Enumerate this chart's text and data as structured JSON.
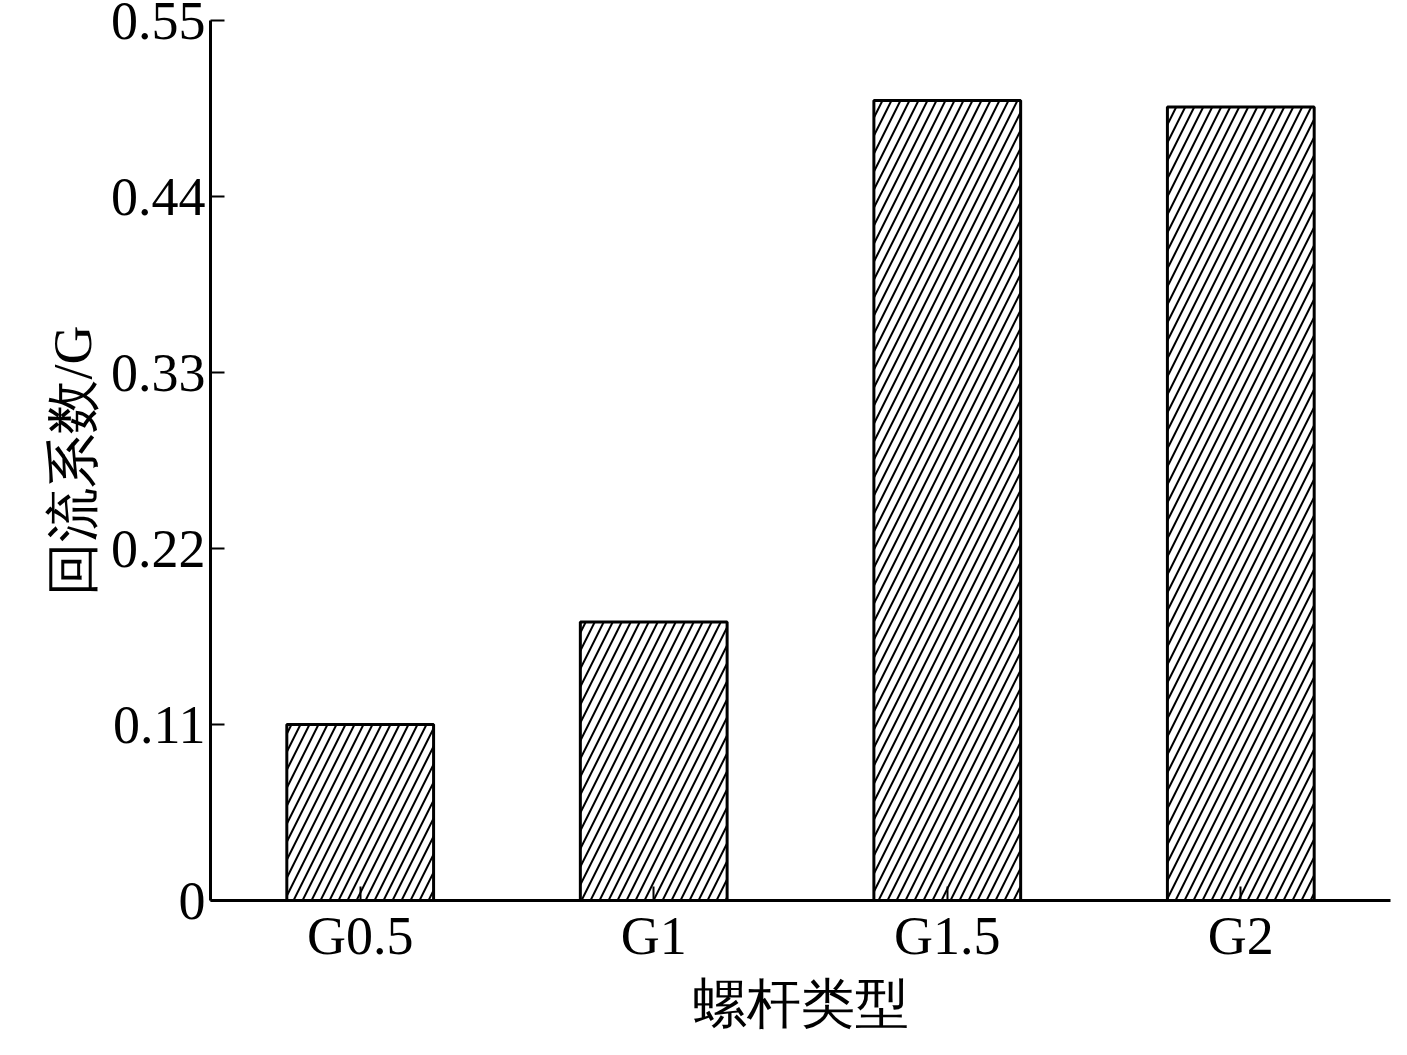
{
  "chart_data": {
    "type": "bar",
    "xlabel": "螺杆类型",
    "ylabel": "回流系数/G",
    "categories": [
      "G0.5",
      "G1",
      "G1.5",
      "G2"
    ],
    "values": [
      0.11,
      0.174,
      0.5,
      0.496
    ],
    "color": "#ffffff",
    "ylim": [
      0,
      0.55
    ],
    "yticks": [
      0,
      0.11,
      0.22,
      0.33,
      0.44,
      0.55
    ],
    "grid": false
  }
}
